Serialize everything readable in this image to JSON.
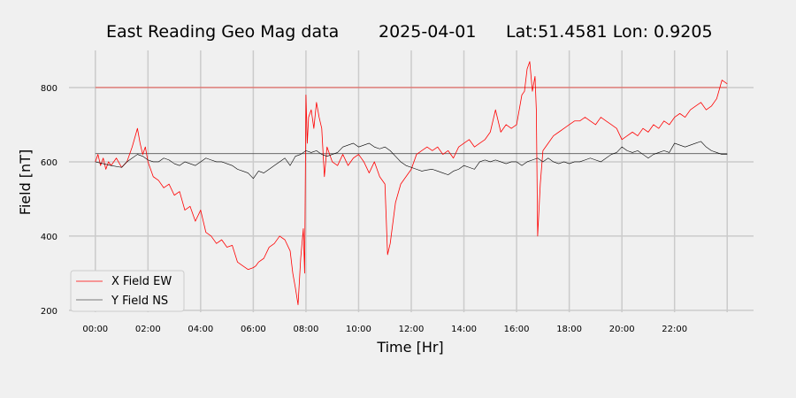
{
  "chart_data": {
    "type": "line",
    "title": {
      "station": "East Reading Geo Mag data",
      "date": "2025-04-01",
      "location": "Lat:51.4581  Lon: 0.9205"
    },
    "xlabel": "Time  [Hr]",
    "ylabel": "Field  [nT]",
    "xlim": [
      -1,
      25
    ],
    "ylim": [
      195,
      900
    ],
    "x_ticks": [
      0,
      2,
      4,
      6,
      8,
      10,
      12,
      14,
      16,
      18,
      20,
      22,
      24
    ],
    "x_tick_labels": [
      "00:00",
      "02:00",
      "04:00",
      "06:00",
      "08:00",
      "10:00",
      "12:00",
      "14:00",
      "16:00",
      "18:00",
      "20:00",
      "22:00",
      ""
    ],
    "y_ticks": [
      200,
      400,
      600,
      800
    ],
    "y_tick_labels": [
      "200",
      "400",
      "600",
      "800"
    ],
    "grid": true,
    "legend_position": "lower-left",
    "reference_lines": [
      {
        "y": 800,
        "color": "#e8413a"
      },
      {
        "y": 622,
        "color": "#555555"
      }
    ],
    "series": [
      {
        "name": "X Field EW",
        "color": "#ff0000",
        "x": [
          0,
          0.1,
          0.2,
          0.3,
          0.4,
          0.5,
          0.6,
          0.8,
          1.0,
          1.2,
          1.4,
          1.6,
          1.7,
          1.8,
          1.9,
          2.0,
          2.2,
          2.4,
          2.6,
          2.8,
          3.0,
          3.2,
          3.4,
          3.6,
          3.8,
          4.0,
          4.2,
          4.4,
          4.6,
          4.8,
          5.0,
          5.2,
          5.4,
          5.6,
          5.8,
          6.0,
          6.1,
          6.2,
          6.4,
          6.6,
          6.8,
          7.0,
          7.2,
          7.4,
          7.5,
          7.6,
          7.7,
          7.8,
          7.9,
          7.95,
          8.0,
          8.05,
          8.1,
          8.2,
          8.3,
          8.4,
          8.5,
          8.6,
          8.7,
          8.8,
          9.0,
          9.2,
          9.4,
          9.6,
          9.8,
          10.0,
          10.2,
          10.4,
          10.6,
          10.8,
          11.0,
          11.1,
          11.2,
          11.4,
          11.6,
          11.8,
          12.0,
          12.2,
          12.4,
          12.6,
          12.8,
          13.0,
          13.2,
          13.4,
          13.6,
          13.8,
          14.0,
          14.2,
          14.4,
          14.6,
          14.8,
          15.0,
          15.2,
          15.4,
          15.6,
          15.8,
          16.0,
          16.2,
          16.3,
          16.4,
          16.5,
          16.6,
          16.7,
          16.75,
          16.8,
          16.9,
          17.0,
          17.2,
          17.4,
          17.6,
          17.8,
          18.0,
          18.2,
          18.4,
          18.6,
          18.8,
          19.0,
          19.2,
          19.4,
          19.6,
          19.8,
          20.0,
          20.2,
          20.4,
          20.6,
          20.8,
          21.0,
          21.2,
          21.4,
          21.6,
          21.8,
          22.0,
          22.2,
          22.4,
          22.6,
          22.8,
          23.0,
          23.2,
          23.4,
          23.6,
          23.8,
          24.0
        ],
        "y": [
          600,
          620,
          590,
          610,
          580,
          600,
          590,
          610,
          585,
          600,
          640,
          690,
          650,
          620,
          640,
          600,
          560,
          550,
          530,
          540,
          510,
          520,
          470,
          480,
          440,
          470,
          410,
          400,
          380,
          390,
          370,
          375,
          330,
          320,
          310,
          315,
          320,
          330,
          340,
          370,
          380,
          400,
          390,
          360,
          300,
          260,
          215,
          340,
          420,
          300,
          780,
          650,
          720,
          740,
          690,
          760,
          720,
          690,
          560,
          640,
          600,
          590,
          620,
          590,
          610,
          620,
          600,
          570,
          600,
          560,
          540,
          350,
          380,
          490,
          540,
          560,
          580,
          620,
          630,
          640,
          630,
          640,
          620,
          630,
          610,
          640,
          650,
          660,
          640,
          650,
          660,
          680,
          740,
          680,
          700,
          690,
          700,
          780,
          790,
          850,
          870,
          790,
          830,
          740,
          400,
          540,
          630,
          650,
          670,
          680,
          690,
          700,
          710,
          710,
          720,
          710,
          700,
          720,
          710,
          700,
          690,
          660,
          670,
          680,
          670,
          690,
          680,
          700,
          690,
          710,
          700,
          720,
          730,
          720,
          740,
          750,
          760,
          740,
          750,
          770,
          820,
          810
        ],
        "stroke_width": 0.8
      },
      {
        "name": "Y Field NS",
        "color": "#000000",
        "x": [
          0,
          0.3,
          0.6,
          1.0,
          1.2,
          1.4,
          1.6,
          1.8,
          2.0,
          2.2,
          2.4,
          2.6,
          2.8,
          3.0,
          3.2,
          3.4,
          3.6,
          3.8,
          4.0,
          4.2,
          4.4,
          4.6,
          4.8,
          5.0,
          5.2,
          5.4,
          5.6,
          5.8,
          6.0,
          6.2,
          6.4,
          6.6,
          6.8,
          7.0,
          7.2,
          7.4,
          7.6,
          7.8,
          8.0,
          8.2,
          8.4,
          8.6,
          8.8,
          9.0,
          9.2,
          9.4,
          9.6,
          9.8,
          10.0,
          10.2,
          10.4,
          10.6,
          10.8,
          11.0,
          11.2,
          11.4,
          11.6,
          11.8,
          12.0,
          12.2,
          12.4,
          12.6,
          12.8,
          13.0,
          13.2,
          13.4,
          13.6,
          13.8,
          14.0,
          14.2,
          14.4,
          14.6,
          14.8,
          15.0,
          15.2,
          15.4,
          15.6,
          15.8,
          16.0,
          16.2,
          16.4,
          16.6,
          16.8,
          17.0,
          17.2,
          17.4,
          17.6,
          17.8,
          18.0,
          18.2,
          18.4,
          18.6,
          18.8,
          19.0,
          19.2,
          19.4,
          19.6,
          19.8,
          20.0,
          20.2,
          20.4,
          20.6,
          20.8,
          21.0,
          21.2,
          21.4,
          21.6,
          21.8,
          22.0,
          22.2,
          22.4,
          22.6,
          22.8,
          23.0,
          23.2,
          23.4,
          23.6,
          23.8,
          24.0
        ],
        "y": [
          600,
          595,
          590,
          585,
          600,
          610,
          620,
          615,
          605,
          600,
          600,
          610,
          605,
          595,
          590,
          600,
          595,
          590,
          600,
          610,
          605,
          600,
          600,
          595,
          590,
          580,
          575,
          570,
          555,
          575,
          570,
          580,
          590,
          600,
          610,
          590,
          615,
          620,
          630,
          625,
          630,
          620,
          615,
          620,
          625,
          640,
          645,
          650,
          640,
          645,
          650,
          640,
          635,
          640,
          630,
          615,
          600,
          590,
          585,
          580,
          575,
          578,
          580,
          575,
          570,
          565,
          575,
          580,
          590,
          585,
          580,
          600,
          605,
          600,
          605,
          600,
          595,
          600,
          600,
          590,
          600,
          605,
          610,
          600,
          610,
          600,
          595,
          600,
          595,
          600,
          600,
          605,
          610,
          605,
          600,
          610,
          620,
          625,
          640,
          630,
          625,
          630,
          620,
          610,
          620,
          625,
          630,
          625,
          650,
          645,
          640,
          645,
          650,
          655,
          640,
          630,
          625,
          620,
          620
        ],
        "stroke_width": 0.6
      }
    ]
  }
}
